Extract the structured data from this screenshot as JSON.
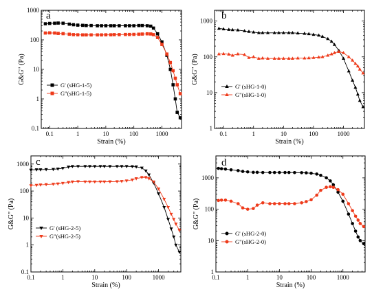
{
  "colors": {
    "black": "#000000",
    "orange": "#ee3a1a",
    "axis": "#000000"
  },
  "chart_data": [
    {
      "type": "line",
      "panel_label": "a",
      "xscale": "log",
      "yscale": "log",
      "xlim": [
        0.05,
        5000
      ],
      "ylim": [
        0.1,
        1000
      ],
      "xticks": [
        "0.1",
        "1",
        "10",
        "100",
        "1000"
      ],
      "yticks": [
        "0.1",
        "1",
        "10",
        "100",
        "1000"
      ],
      "xlabel": "Strain (%)",
      "ylabel": "G&G\" (Pa)",
      "legend_position": "middle-left",
      "series": [
        {
          "name": "G' (sHG-1-5)",
          "marker": "square",
          "color": "#000000",
          "x": [
            0.07,
            0.1,
            0.15,
            0.2,
            0.3,
            0.5,
            0.7,
            1,
            1.5,
            2,
            3,
            5,
            7,
            10,
            15,
            20,
            30,
            50,
            70,
            100,
            150,
            200,
            300,
            400,
            500,
            700,
            1000,
            1500,
            2000,
            2500,
            3000,
            3500,
            4500
          ],
          "y": [
            350,
            360,
            365,
            370,
            365,
            340,
            325,
            315,
            310,
            305,
            305,
            300,
            300,
            300,
            300,
            300,
            300,
            300,
            300,
            300,
            305,
            305,
            300,
            290,
            250,
            160,
            85,
            30,
            10,
            3,
            1,
            0.35,
            0.23
          ]
        },
        {
          "name": "G\"(sHG-1-5)",
          "marker": "square",
          "color": "#ee3a1a",
          "x": [
            0.07,
            0.1,
            0.15,
            0.2,
            0.3,
            0.5,
            0.7,
            1,
            1.5,
            2,
            3,
            5,
            7,
            10,
            15,
            20,
            30,
            50,
            70,
            100,
            150,
            200,
            300,
            400,
            500,
            700,
            1000,
            1500,
            2000,
            2500,
            3000,
            3500,
            4500
          ],
          "y": [
            170,
            172,
            170,
            165,
            162,
            155,
            150,
            148,
            147,
            147,
            147,
            147,
            147,
            148,
            148,
            150,
            150,
            152,
            152,
            153,
            155,
            157,
            160,
            158,
            150,
            120,
            70,
            33,
            17,
            9,
            5,
            3,
            1.5
          ]
        }
      ]
    },
    {
      "type": "line",
      "panel_label": "b",
      "xscale": "log",
      "yscale": "log",
      "xlim": [
        0.05,
        5000
      ],
      "ylim": [
        1,
        2000
      ],
      "xticks": [
        "0.1",
        "1",
        "10",
        "100",
        "1000"
      ],
      "yticks": [
        "1",
        "10",
        "100",
        "1000"
      ],
      "xlabel": "Strain (%)",
      "ylabel": "G&G\" (Pa)",
      "legend_position": "middle-left",
      "series": [
        {
          "name": "G' (sHG-1-0)",
          "marker": "triangle-up",
          "color": "#000000",
          "x": [
            0.07,
            0.1,
            0.15,
            0.2,
            0.3,
            0.5,
            0.7,
            1,
            1.5,
            2,
            3,
            5,
            7,
            10,
            15,
            20,
            30,
            50,
            70,
            100,
            150,
            200,
            300,
            400,
            500,
            700,
            1000,
            1500,
            2000,
            2500,
            3000,
            3500,
            4500
          ],
          "y": [
            620,
            600,
            580,
            570,
            560,
            530,
            510,
            490,
            470,
            470,
            470,
            470,
            470,
            470,
            470,
            470,
            460,
            450,
            440,
            420,
            400,
            370,
            320,
            270,
            220,
            150,
            90,
            40,
            22,
            14,
            9,
            6,
            4
          ]
        },
        {
          "name": "G\"(sHG-1-0)",
          "marker": "triangle-up",
          "color": "#ee3a1a",
          "x": [
            0.07,
            0.1,
            0.15,
            0.2,
            0.3,
            0.5,
            0.7,
            1,
            1.5,
            2,
            3,
            5,
            7,
            10,
            15,
            20,
            30,
            50,
            70,
            100,
            150,
            200,
            300,
            400,
            500,
            700,
            1000,
            1500,
            2000,
            2500,
            3000,
            3500,
            4500
          ],
          "y": [
            120,
            122,
            118,
            110,
            120,
            115,
            95,
            100,
            90,
            92,
            90,
            90,
            90,
            90,
            90,
            90,
            92,
            92,
            93,
            95,
            98,
            100,
            110,
            120,
            130,
            140,
            130,
            100,
            80,
            65,
            55,
            45,
            35
          ]
        }
      ]
    },
    {
      "type": "line",
      "panel_label": "c",
      "xscale": "log",
      "yscale": "log",
      "xlim": [
        0.1,
        5000
      ],
      "ylim": [
        0.1,
        2000
      ],
      "xticks": [
        "0.1",
        "1",
        "10",
        "100",
        "1000"
      ],
      "yticks": [
        "0.1",
        "1",
        "10",
        "100",
        "1000"
      ],
      "xlabel": "Strain (%)",
      "ylabel": "G&G\" (Pa)",
      "legend_position": "lower-left",
      "series": [
        {
          "name": "G' (sHG-2-5)",
          "marker": "triangle-down",
          "color": "#000000",
          "x": [
            0.1,
            0.15,
            0.2,
            0.3,
            0.5,
            0.7,
            1,
            1.5,
            2,
            3,
            5,
            7,
            10,
            15,
            20,
            30,
            50,
            70,
            100,
            150,
            200,
            300,
            400,
            500,
            700,
            1000,
            1500,
            2000,
            2500,
            3000,
            3500,
            4500
          ],
          "y": [
            600,
            620,
            620,
            630,
            640,
            660,
            700,
            780,
            820,
            820,
            820,
            820,
            820,
            820,
            820,
            820,
            820,
            820,
            820,
            810,
            790,
            720,
            560,
            400,
            200,
            80,
            25,
            9,
            4,
            2,
            1,
            0.55
          ]
        },
        {
          "name": "G\"(sHG-2-5)",
          "marker": "triangle-down",
          "color": "#ee3a1a",
          "x": [
            0.1,
            0.15,
            0.2,
            0.3,
            0.5,
            0.7,
            1,
            1.5,
            2,
            3,
            5,
            7,
            10,
            15,
            20,
            30,
            50,
            70,
            100,
            150,
            200,
            300,
            400,
            500,
            700,
            1000,
            1500,
            2000,
            2500,
            3000,
            3500,
            4500
          ],
          "y": [
            160,
            165,
            170,
            175,
            180,
            185,
            195,
            210,
            220,
            225,
            220,
            220,
            220,
            220,
            220,
            222,
            225,
            230,
            240,
            260,
            290,
            320,
            320,
            290,
            220,
            120,
            50,
            25,
            14,
            9,
            6,
            3.5
          ]
        }
      ]
    },
    {
      "type": "line",
      "panel_label": "d",
      "xscale": "log",
      "yscale": "log",
      "xlim": [
        0.1,
        5000
      ],
      "ylim": [
        1,
        5000
      ],
      "xticks": [
        "0.1",
        "1",
        "10",
        "100",
        "1000"
      ],
      "yticks": [
        "1",
        "10",
        "100",
        "1000"
      ],
      "xlabel": "Strain (%)",
      "ylabel": "G&G\" (Pa)",
      "legend_position": "middle-left",
      "series": [
        {
          "name": "G' (sHG-2-0)",
          "marker": "circle",
          "color": "#000000",
          "x": [
            0.12,
            0.15,
            0.2,
            0.3,
            0.5,
            0.7,
            1,
            1.5,
            2,
            3,
            5,
            7,
            10,
            15,
            20,
            30,
            50,
            70,
            100,
            150,
            200,
            300,
            400,
            500,
            700,
            1000,
            1500,
            2000,
            2500,
            3000,
            3500,
            4500
          ],
          "y": [
            2000,
            1950,
            1900,
            1800,
            1700,
            1600,
            1550,
            1500,
            1500,
            1480,
            1480,
            1480,
            1480,
            1480,
            1480,
            1470,
            1460,
            1440,
            1400,
            1320,
            1200,
            1000,
            800,
            600,
            350,
            180,
            70,
            35,
            20,
            13,
            10,
            8
          ]
        },
        {
          "name": "G\"(sHG-2-0)",
          "marker": "circle",
          "color": "#ee3a1a",
          "x": [
            0.12,
            0.15,
            0.2,
            0.3,
            0.5,
            0.7,
            1,
            1.5,
            2,
            3,
            5,
            7,
            10,
            15,
            20,
            30,
            50,
            70,
            100,
            150,
            200,
            300,
            400,
            500,
            700,
            1000,
            1500,
            2000,
            2500,
            3000,
            3500,
            4500
          ],
          "y": [
            190,
            195,
            195,
            180,
            150,
            110,
            100,
            105,
            135,
            160,
            150,
            150,
            150,
            150,
            150,
            150,
            160,
            175,
            200,
            280,
            400,
            500,
            520,
            500,
            420,
            300,
            150,
            90,
            60,
            45,
            35,
            28
          ]
        }
      ]
    }
  ]
}
